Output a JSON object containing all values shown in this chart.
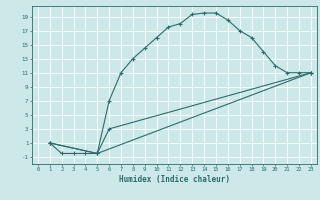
{
  "xlabel": "Humidex (Indice chaleur)",
  "bg_color": "#cce8e8",
  "line_color": "#2e6b6b",
  "grid_color": "#ffffff",
  "xlim": [
    -0.5,
    23.5
  ],
  "ylim": [
    -2,
    20.5
  ],
  "xticks": [
    0,
    1,
    2,
    3,
    4,
    5,
    6,
    7,
    8,
    9,
    10,
    11,
    12,
    13,
    14,
    15,
    16,
    17,
    18,
    19,
    20,
    21,
    22,
    23
  ],
  "yticks": [
    -1,
    1,
    3,
    5,
    7,
    9,
    11,
    13,
    15,
    17,
    19
  ],
  "line1_x": [
    1,
    2,
    3,
    4,
    5,
    6,
    7,
    8,
    9,
    10,
    11,
    12,
    13,
    14,
    15,
    16,
    17,
    18,
    19,
    20,
    21,
    22,
    23
  ],
  "line1_y": [
    1,
    -0.5,
    -0.5,
    -0.5,
    -0.5,
    7,
    11,
    13,
    14.5,
    16,
    17.5,
    18,
    19.3,
    19.5,
    19.5,
    18.5,
    17,
    16,
    14,
    12,
    11,
    11,
    11
  ],
  "line2_x": [
    1,
    5,
    6,
    23
  ],
  "line2_y": [
    1,
    -0.5,
    3,
    11
  ],
  "line3_x": [
    1,
    5,
    23
  ],
  "line3_y": [
    1,
    -0.5,
    11
  ]
}
